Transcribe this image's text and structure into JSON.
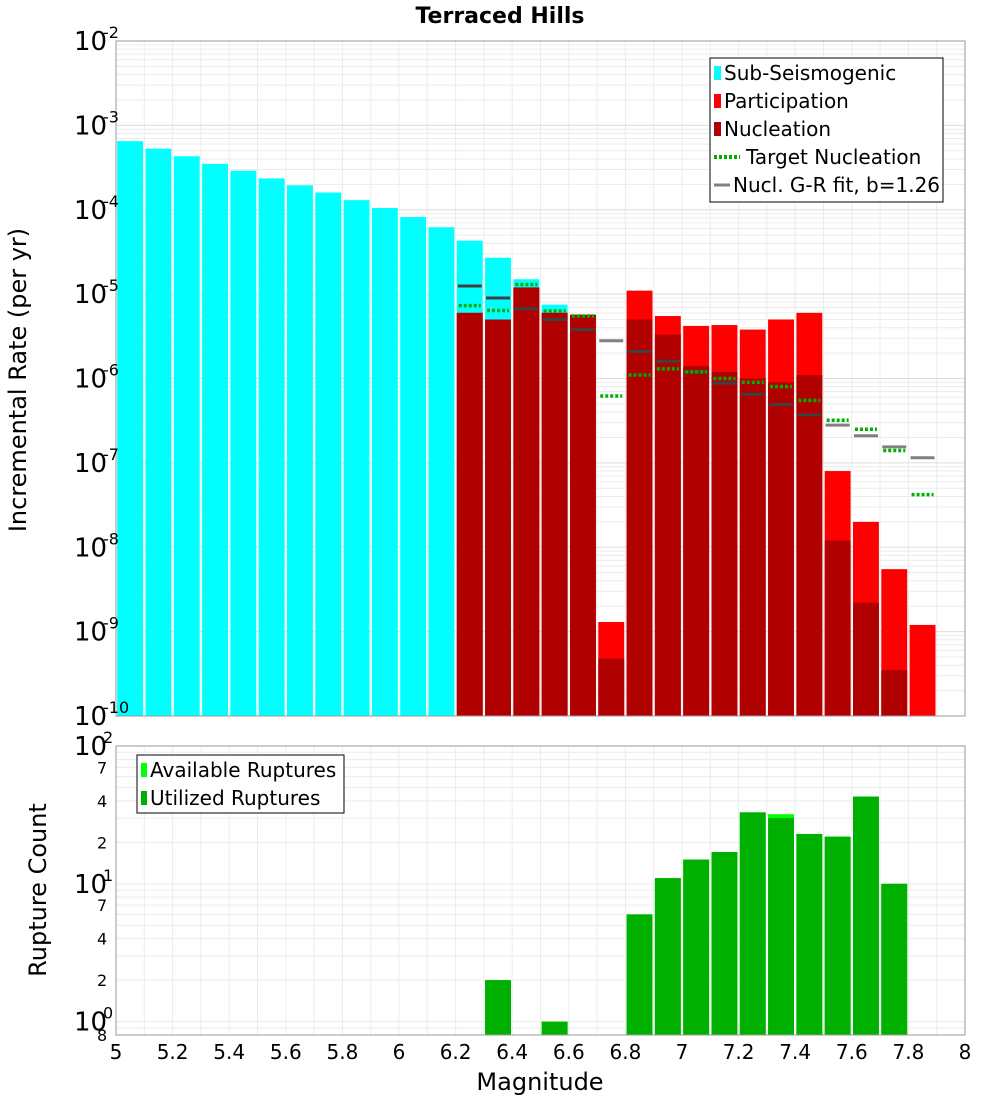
{
  "chart_data": [
    {
      "type": "bar",
      "title": "Terraced Hills",
      "xlabel": "Magnitude",
      "ylabel": "Incremental Rate (per yr)",
      "yscale": "log",
      "xlim": [
        5,
        8
      ],
      "ylim": [
        1e-10,
        0.01
      ],
      "grid": true,
      "legend_position": "top-right",
      "legend": [
        "Sub-Seismogenic",
        "Participation",
        "Nucleation",
        "Target Nucleation",
        "Nucl. G-R fit, b=1.26"
      ],
      "colors": {
        "sub_seismogenic": "#00ffff",
        "participation": "#ff0000",
        "nucleation": "#b00000",
        "target_nucleation": "#00b000",
        "gr_fit": "#808080"
      },
      "series": [
        {
          "name": "Sub-Seismogenic",
          "x": [
            5.05,
            5.15,
            5.25,
            5.35,
            5.45,
            5.55,
            5.65,
            5.75,
            5.85,
            5.95,
            6.05,
            6.15,
            6.25,
            6.35,
            6.45,
            6.55
          ],
          "values": [
            0.00065,
            0.00053,
            0.00043,
            0.00035,
            0.00029,
            0.000235,
            0.000195,
            0.00016,
            0.00013,
            0.000105,
            8.2e-05,
            6.2e-05,
            4.3e-05,
            2.7e-05,
            1.5e-05,
            7.5e-06
          ]
        },
        {
          "name": "Participation",
          "x": [
            6.25,
            6.35,
            6.45,
            6.55,
            6.65,
            6.75,
            6.85,
            6.95,
            7.05,
            7.15,
            7.25,
            7.35,
            7.45,
            7.55,
            7.65,
            7.75,
            7.85
          ],
          "values": [
            6e-06,
            5e-06,
            1.2e-05,
            6e-06,
            5.7e-06,
            1.3e-09,
            1.1e-05,
            5.5e-06,
            4.2e-06,
            4.3e-06,
            3.8e-06,
            5e-06,
            6e-06,
            8e-08,
            2e-08,
            5.5e-09,
            1.2e-09
          ]
        },
        {
          "name": "Nucleation",
          "x": [
            6.25,
            6.35,
            6.45,
            6.55,
            6.65,
            6.75,
            6.85,
            6.95,
            7.05,
            7.15,
            7.25,
            7.35,
            7.45,
            7.55,
            7.65,
            7.75
          ],
          "values": [
            6e-06,
            5e-06,
            1.2e-05,
            6e-06,
            5.7e-06,
            4.8e-10,
            5e-06,
            3.3e-06,
            1.4e-06,
            1.2e-06,
            1e-06,
            9e-07,
            1.1e-06,
            1.2e-08,
            2.2e-09,
            3.5e-10
          ]
        },
        {
          "name": "Target Nucleation",
          "x": [
            6.25,
            6.35,
            6.45,
            6.55,
            6.65,
            6.75,
            6.85,
            6.95,
            7.05,
            7.15,
            7.25,
            7.35,
            7.45,
            7.55,
            7.65,
            7.75,
            7.85
          ],
          "values": [
            7.3e-06,
            6.4e-06,
            1.3e-05,
            6.3e-06,
            5.5e-06,
            6.2e-07,
            1.1e-06,
            1.3e-06,
            1.2e-06,
            1e-06,
            9e-07,
            8e-07,
            5.5e-07,
            3.2e-07,
            2.5e-07,
            1.4e-07,
            4.2e-08
          ]
        },
        {
          "name": "Nucl. G-R fit, b=1.26",
          "x": [
            6.25,
            6.35,
            6.45,
            6.55,
            6.65,
            6.75,
            6.85,
            6.95,
            7.05,
            7.15,
            7.25,
            7.35,
            7.45,
            7.55,
            7.65,
            7.75,
            7.85
          ],
          "values": [
            1.25e-05,
            9e-06,
            6.7e-06,
            5e-06,
            3.8e-06,
            2.8e-06,
            2.1e-06,
            1.6e-06,
            1.2e-06,
            8.8e-07,
            6.5e-07,
            4.9e-07,
            3.7e-07,
            2.8e-07,
            2.1e-07,
            1.55e-07,
            1.15e-07
          ]
        }
      ]
    },
    {
      "type": "bar",
      "xlabel": "Magnitude",
      "ylabel": "Rupture Count",
      "yscale": "log",
      "xlim": [
        5,
        8
      ],
      "ylim": [
        0.8,
        100
      ],
      "grid": true,
      "legend_position": "top-left",
      "legend": [
        "Available Ruptures",
        "Utilized Ruptures"
      ],
      "colors": {
        "available": "#00ff00",
        "utilized": "#00b000"
      },
      "series": [
        {
          "name": "Available Ruptures",
          "x": [
            6.35,
            6.55,
            6.85,
            6.95,
            7.05,
            7.15,
            7.25,
            7.35,
            7.45,
            7.55,
            7.65,
            7.75
          ],
          "values": [
            2,
            1,
            6,
            11,
            15,
            17,
            33,
            32,
            23,
            22,
            43,
            10
          ]
        },
        {
          "name": "Utilized Ruptures",
          "x": [
            6.35,
            6.55,
            6.85,
            6.95,
            7.05,
            7.15,
            7.25,
            7.35,
            7.45,
            7.55,
            7.65,
            7.75
          ],
          "values": [
            2,
            1,
            6,
            11,
            15,
            17,
            33,
            30,
            23,
            22,
            43,
            10
          ]
        }
      ]
    }
  ],
  "axes": {
    "x_ticks": [
      "5",
      "5.2",
      "5.4",
      "5.6",
      "5.8",
      "6",
      "6.2",
      "6.4",
      "6.6",
      "6.8",
      "7",
      "7.2",
      "7.4",
      "7.6",
      "7.8",
      "8"
    ],
    "top_decades": [
      {
        "base": "10",
        "exp": "-2"
      },
      {
        "base": "10",
        "exp": "-3"
      },
      {
        "base": "10",
        "exp": "-4"
      },
      {
        "base": "10",
        "exp": "-5"
      },
      {
        "base": "10",
        "exp": "-6"
      },
      {
        "base": "10",
        "exp": "-7"
      },
      {
        "base": "10",
        "exp": "-8"
      },
      {
        "base": "10",
        "exp": "-9"
      },
      {
        "base": "10",
        "exp": "-10"
      }
    ],
    "bottom_decades": [
      {
        "base": "10",
        "exp": "2"
      },
      {
        "base": "10",
        "exp": "1"
      },
      {
        "base": "10",
        "exp": "0"
      }
    ],
    "bottom_minor_labels": [
      {
        "label": "7",
        "value": 70
      },
      {
        "label": "4",
        "value": 40
      },
      {
        "label": "2",
        "value": 20
      },
      {
        "label": "7",
        "value": 7
      },
      {
        "label": "4",
        "value": 4
      },
      {
        "label": "2",
        "value": 2
      },
      {
        "label": "8",
        "value": 0.8
      }
    ]
  }
}
